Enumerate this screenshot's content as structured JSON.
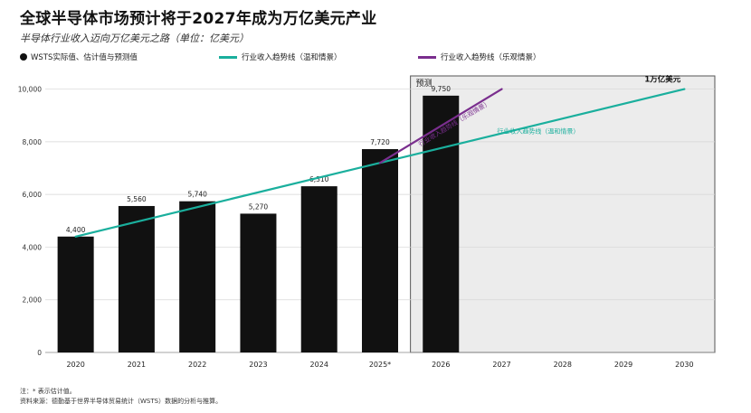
{
  "header": {
    "title": "全球半导体市场预计将于2027年成为万亿美元产业",
    "subtitle": "半导体行业收入迈向万亿美元之路（单位：亿美元）"
  },
  "legend": {
    "bars": "WSTS实际值、估计值与预测值",
    "moderate": "行业收入趋势线（温和情景）",
    "optimistic": "行业收入趋势线（乐观情景）"
  },
  "footer": {
    "note": "注：* 表示估计值。",
    "source": "资料来源：德勤基于世界半导体贸易统计（WSTS）数据的分析与推算。"
  },
  "colors": {
    "bar": "#111111",
    "moderate": "#1aaf9d",
    "optimistic": "#7a2e8e",
    "forecast_bg": "#ececec",
    "grid": "#d6d6d6"
  },
  "chart_data": {
    "type": "bar",
    "categories": [
      "2020",
      "2021",
      "2022",
      "2023",
      "2024",
      "2025*",
      "2026",
      "2027",
      "2028",
      "2029",
      "2030"
    ],
    "series": [
      {
        "name": "WSTS实际值、估计值与预测值",
        "values": [
          4400,
          5560,
          5740,
          5270,
          6310,
          7720,
          9750,
          null,
          null,
          null,
          null
        ]
      }
    ],
    "bar_labels": [
      "4,400",
      "5,560",
      "5,740",
      "5,270",
      "6,310",
      "7,720",
      "9,750"
    ],
    "trend_lines": [
      {
        "name": "行业收入趋势线（温和情景）",
        "label": "行业收入趋势线（温和情景）",
        "points": [
          [
            "2020",
            4400
          ],
          [
            "2030",
            10000
          ]
        ]
      },
      {
        "name": "行业收入趋势线（乐观情景）",
        "label": "行业收入趋势线（乐观情景）",
        "points": [
          [
            "2025*",
            7200
          ],
          [
            "2027",
            10000
          ]
        ]
      }
    ],
    "forecast_region": {
      "label": "预测",
      "from": "2026",
      "to": "2030"
    },
    "annotation": "1万亿美元",
    "yticks": [
      0,
      2000,
      4000,
      6000,
      8000,
      10000
    ],
    "ytick_labels": [
      "0",
      "2,000",
      "4,000",
      "6,000",
      "8,000",
      "10,000"
    ],
    "ylim": [
      0,
      10500
    ],
    "xlabel": "",
    "ylabel": "",
    "grid": true
  }
}
